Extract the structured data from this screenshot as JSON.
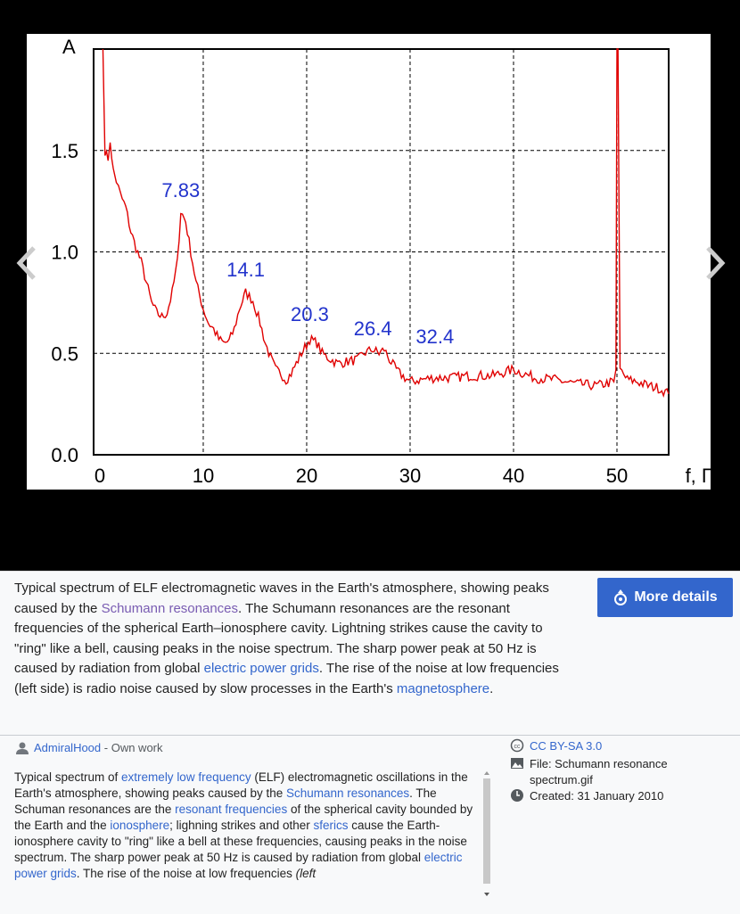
{
  "chart_data": {
    "type": "line",
    "ylabel": "A",
    "xlabel": "f, Гц",
    "xlim": [
      -0.6,
      55
    ],
    "ylim": [
      0,
      2.0
    ],
    "xticks": [
      "0",
      "10",
      "20",
      "30",
      "40",
      "50"
    ],
    "yticks": [
      "0.0",
      "0.5",
      "1.0",
      "1.5"
    ],
    "grid": true,
    "color": "#e00000",
    "annotation_color": "#2233cc",
    "annotations": [
      {
        "x": 7.83,
        "y": 1.27,
        "text": "7.83"
      },
      {
        "x": 14.1,
        "y": 0.88,
        "text": "14.1"
      },
      {
        "x": 20.3,
        "y": 0.66,
        "text": "20.3"
      },
      {
        "x": 26.4,
        "y": 0.59,
        "text": "26.4"
      },
      {
        "x": 32.4,
        "y": 0.55,
        "text": "32.4"
      }
    ],
    "x": [
      0.3,
      0.5,
      0.8,
      1,
      1.3,
      1.6,
      2,
      2.5,
      3,
      3.5,
      4,
      4.5,
      5,
      5.5,
      6,
      6.5,
      7,
      7.5,
      7.83,
      8.3,
      8.8,
      9.3,
      10,
      10.5,
      11,
      11.5,
      12,
      12.5,
      13,
      13.5,
      14.1,
      14.8,
      15.5,
      16,
      16.5,
      17,
      17.5,
      18,
      18.5,
      19,
      19.5,
      20.3,
      21,
      21.5,
      22,
      23,
      24,
      25,
      25.5,
      26.4,
      27,
      27.5,
      28,
      28.5,
      29,
      30,
      31,
      32.4,
      34,
      36,
      38,
      40,
      41,
      42,
      44,
      46,
      48,
      49.7,
      49.9,
      50,
      50.1,
      50.3,
      51,
      52,
      53,
      54,
      55
    ],
    "y": [
      2.0,
      1.5,
      1.45,
      1.55,
      1.4,
      1.35,
      1.28,
      1.22,
      1.1,
      1.02,
      0.95,
      0.85,
      0.75,
      0.7,
      0.68,
      0.7,
      0.8,
      0.95,
      1.2,
      1.15,
      1.0,
      0.85,
      0.72,
      0.65,
      0.62,
      0.57,
      0.55,
      0.56,
      0.62,
      0.72,
      0.8,
      0.76,
      0.65,
      0.55,
      0.48,
      0.42,
      0.4,
      0.37,
      0.4,
      0.45,
      0.5,
      0.57,
      0.55,
      0.5,
      0.48,
      0.45,
      0.46,
      0.47,
      0.5,
      0.52,
      0.5,
      0.52,
      0.47,
      0.43,
      0.4,
      0.36,
      0.37,
      0.38,
      0.38,
      0.39,
      0.39,
      0.42,
      0.4,
      0.38,
      0.37,
      0.35,
      0.34,
      0.36,
      0.42,
      2.0,
      2.0,
      0.42,
      0.37,
      0.36,
      0.34,
      0.33,
      0.3
    ]
  },
  "nav": {
    "prev_icon": "chevron-left-icon",
    "next_icon": "chevron-right-icon"
  },
  "caption": {
    "t1": "Typical spectrum of ELF electromagnetic waves in the Earth's atmosphere, showing peaks caused by the ",
    "l1": "Schumann resonances",
    "t2": ". The Schumann resonances are the resonant frequencies of the spherical Earth–ionosphere cavity. Lightning strikes cause the cavity to \"ring\" like a bell, causing peaks in the noise spectrum. The sharp power peak at 50 Hz is caused by radiation from global ",
    "l2": "electric power grids",
    "t3": ". The rise of the noise at low frequencies (left side) is radio noise caused by slow processes in the Earth's ",
    "l3": "magnetosphere",
    "t4": ".",
    "more_details": "More details"
  },
  "meta": {
    "author": "AdmiralHood",
    "author_suffix": " - Own work",
    "d": [
      "Typical spectrum of ",
      "extremely low frequency",
      " (ELF) electromagnetic oscillations in the Earth's atmosphere, showing peaks caused by the ",
      "Schumann resonances",
      ". The Schuman resonances are the ",
      "resonant frequencies",
      " of the spherical cavity bounded by the Earth and the ",
      "ionosphere",
      "; lighning strikes and other ",
      "sferics",
      " cause the Earth-ionosphere cavity to \"ring\" like a bell at these frequencies, causing peaks in the noise spectrum. The sharp power peak at 50 Hz is caused by radiation from global ",
      "electric power grids",
      ". The rise of the noise at low frequencies ",
      "(left"
    ],
    "license": "CC BY-SA 3.0",
    "file": "File: Schumann resonance spectrum.gif",
    "created": "Created: 31 January 2010"
  }
}
